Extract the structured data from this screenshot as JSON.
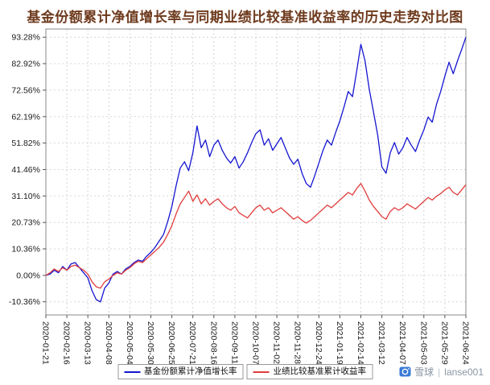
{
  "page": {
    "watermark": {
      "brand": "雪球",
      "divider": "|",
      "username": "lanse001",
      "brand_color": "#3a7bd5",
      "text_color": "#8a97a3"
    }
  },
  "chart_data": {
    "type": "line",
    "title": "基金份额累计净值增长率与同期业绩比较基准收益率的历史走势对比图",
    "xlabel": "",
    "ylabel": "",
    "grid": true,
    "legend_position": "bottom",
    "ylim": [
      -15.5,
      96.5
    ],
    "y_ticks": [
      93.28,
      82.92,
      72.56,
      62.19,
      51.82,
      41.46,
      31.1,
      20.73,
      10.36,
      0.0,
      -10.36
    ],
    "y_tick_labels": [
      "93.28%",
      "82.92%",
      "72.56%",
      "62.19%",
      "51.82%",
      "41.46%",
      "31.10%",
      "20.73%",
      "10.36%",
      "0.00%",
      "-10.36%"
    ],
    "x_tick_labels": [
      "2020-01-21",
      "2020-02-16",
      "2020-03-13",
      "2020-04-08",
      "2020-05-04",
      "2020-05-30",
      "2020-06-25",
      "2020-07-21",
      "2020-08-16",
      "2020-09-11",
      "2020-10-07",
      "2020-11-02",
      "2020-11-28",
      "2020-12-24",
      "2021-01-19",
      "2021-02-14",
      "2021-03-12",
      "2021-04-07",
      "2021-05-03",
      "2021-05-29",
      "2021-06-24"
    ],
    "x_step": 0.2,
    "colors": {
      "title": "#6e3a1d",
      "grid": "#d6d6d6",
      "border": "#8a8a8a",
      "axis": "#555555",
      "text": "#1a1a1a"
    },
    "series": [
      {
        "id": "fund",
        "name": "基金份额累计净值增长率",
        "color": "#1515d0",
        "values": [
          0,
          0.5,
          2,
          1,
          3.5,
          2,
          4.5,
          5,
          3,
          1,
          -1,
          -6,
          -9.5,
          -10.4,
          -5,
          -3,
          0.5,
          1.5,
          0.5,
          2.5,
          3.5,
          5,
          6,
          5.5,
          7.5,
          9,
          11,
          13.5,
          16,
          21,
          27,
          35,
          42,
          44.5,
          41,
          48,
          58.5,
          50,
          53,
          46.5,
          51,
          53,
          49,
          46,
          44,
          46.5,
          42,
          44.5,
          48,
          52,
          55.5,
          57,
          51,
          53.5,
          49,
          51.5,
          54,
          50,
          46,
          43.5,
          45.5,
          40,
          36,
          34.5,
          39,
          44,
          49,
          53,
          51,
          56,
          60.5,
          66,
          72,
          70,
          80,
          90.5,
          84,
          73,
          64,
          55,
          42.5,
          40,
          48,
          52,
          47.5,
          50,
          54,
          51,
          48.5,
          53,
          57,
          62,
          60,
          67,
          72,
          78,
          83.5,
          79,
          84,
          88.5,
          93.28
        ]
      },
      {
        "id": "benchmark",
        "name": "业绩比较基准累计收益率",
        "color": "#e03c3c",
        "values": [
          0,
          1,
          2.5,
          1.5,
          3,
          2,
          3.5,
          4,
          3,
          2,
          0.5,
          -2.5,
          -4.5,
          -5,
          -2.5,
          -1.5,
          0,
          1,
          0.5,
          2,
          3,
          4.5,
          5.5,
          5,
          6.5,
          8,
          9.5,
          11,
          13,
          16,
          19.5,
          24,
          28,
          30.5,
          33,
          29,
          31.5,
          28,
          30,
          27.5,
          29,
          30,
          28,
          26.5,
          25.5,
          27,
          24.5,
          23.5,
          22.5,
          24.5,
          26.5,
          27.5,
          25.5,
          26.5,
          24.5,
          25.5,
          26.5,
          25,
          23.5,
          22,
          23,
          21.5,
          20.5,
          21.5,
          23,
          24.5,
          26,
          27.5,
          26.5,
          28,
          29.5,
          31,
          32.5,
          31.5,
          34,
          36,
          33,
          29.5,
          27,
          25,
          23,
          22,
          25,
          26.5,
          25.5,
          26.5,
          28,
          27,
          26,
          27.5,
          29,
          30.5,
          29.5,
          31,
          32,
          33.5,
          34.5,
          32.5,
          31.5,
          33.5,
          35.5
        ]
      }
    ]
  }
}
